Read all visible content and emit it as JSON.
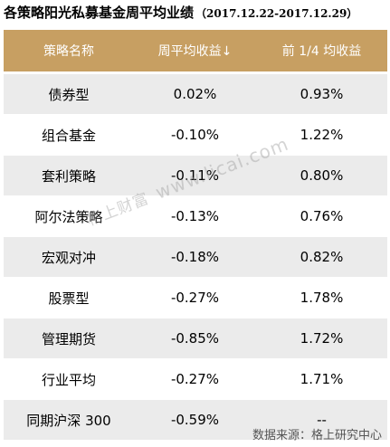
{
  "title": {
    "main": "各策略阳光私募基金周平均业绩",
    "range": "（2017.12.22-2017.12.29）"
  },
  "table": {
    "headers": [
      "策略名称",
      "周平均收益↓",
      "前 1/4 均收益"
    ],
    "rows": [
      [
        "债券型",
        "0.02%",
        "0.93%"
      ],
      [
        "组合基金",
        "-0.10%",
        "1.22%"
      ],
      [
        "套利策略",
        "-0.11%",
        "0.80%"
      ],
      [
        "阿尔法策略",
        "-0.13%",
        "0.76%"
      ],
      [
        "宏观对冲",
        "-0.18%",
        "0.82%"
      ],
      [
        "股票型",
        "-0.27%",
        "1.78%"
      ],
      [
        "管理期货",
        "-0.85%",
        "1.72%"
      ],
      [
        "行业平均",
        "-0.27%",
        "1.71%"
      ],
      [
        "同期沪深 300",
        "-0.59%",
        "--"
      ]
    ]
  },
  "watermark": {
    "brand": "格上财富",
    "url": "www.licai.com"
  },
  "source": "数据来源：格上研究中心",
  "colors": {
    "header_bg": "#c79f62",
    "header_text": "#ffffff",
    "row_alt_bg": "#ebebeb",
    "row_plain_bg": "#ffffff"
  }
}
